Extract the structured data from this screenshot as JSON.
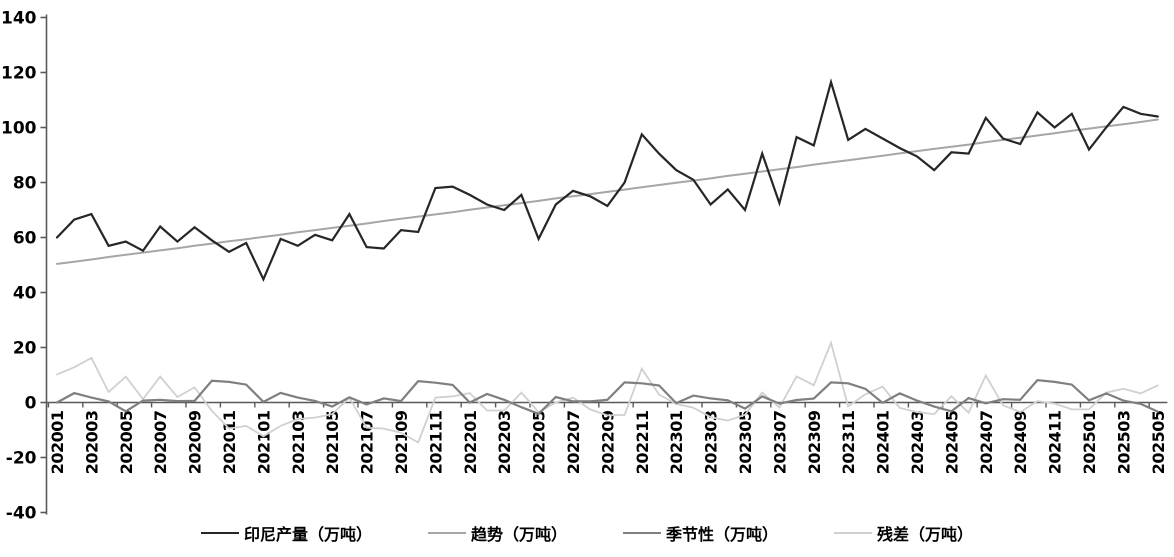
{
  "chart_data": {
    "type": "line",
    "title": "",
    "xlabel": "",
    "ylabel": "",
    "ylim": [
      -40,
      140
    ],
    "ytick_step": 20,
    "ytick_labels": [
      "140",
      "120",
      "100",
      "80",
      "60",
      "40",
      "20",
      "0",
      "-20",
      "-40"
    ],
    "x_label_interval": 2,
    "grid": false,
    "legend_position": "bottom",
    "axis_color": "#595959",
    "text_color": "#000000",
    "categories": [
      "202001",
      "202002",
      "202003",
      "202004",
      "202005",
      "202006",
      "202007",
      "202008",
      "202009",
      "202010",
      "202011",
      "202012",
      "202101",
      "202102",
      "202103",
      "202104",
      "202105",
      "202106",
      "202107",
      "202108",
      "202109",
      "202110",
      "202111",
      "202112",
      "202201",
      "202202",
      "202203",
      "202204",
      "202205",
      "202206",
      "202207",
      "202208",
      "202209",
      "202210",
      "202211",
      "202212",
      "202301",
      "202302",
      "202303",
      "202304",
      "202305",
      "202306",
      "202307",
      "202308",
      "202309",
      "202310",
      "202311",
      "202312",
      "202401",
      "202402",
      "202403",
      "202404",
      "202405",
      "202406",
      "202407",
      "202408",
      "202409",
      "202410",
      "202411",
      "202412",
      "202501",
      "202502",
      "202503",
      "202504",
      "202505"
    ],
    "series": [
      {
        "name": "production",
        "label": "印尼产量（万吨）",
        "color": "#262626",
        "width": 2.2,
        "values": [
          60.0,
          66.5,
          68.5,
          57.0,
          58.5,
          55.2,
          64.0,
          58.5,
          63.7,
          59.0,
          54.8,
          58.0,
          44.8,
          59.5,
          57.0,
          61.0,
          59.0,
          68.5,
          56.5,
          56.0,
          62.7,
          62.0,
          78.0,
          78.5,
          75.5,
          72.0,
          70.0,
          75.5,
          59.5,
          72.0,
          77.0,
          75.0,
          71.5,
          80.0,
          97.5,
          90.5,
          84.5,
          81.0,
          72.0,
          77.5,
          70.0,
          90.5,
          72.5,
          96.5,
          93.5,
          116.5,
          95.5,
          99.5,
          96.0,
          92.5,
          89.5,
          84.5,
          91.0,
          90.5,
          103.5,
          96.0,
          94.0,
          105.5,
          100.0,
          105.0,
          92.0,
          100.0,
          107.5,
          105.0,
          104.0
        ]
      },
      {
        "name": "trend",
        "label": "趋势（万吨）",
        "color": "#a6a6a6",
        "width": 2.0,
        "values": [
          50.4,
          51.2,
          52.0,
          52.9,
          53.7,
          54.5,
          55.3,
          56.1,
          57.0,
          57.8,
          58.6,
          59.4,
          60.2,
          61.0,
          61.9,
          62.7,
          63.5,
          64.3,
          65.1,
          66.0,
          66.8,
          67.6,
          68.4,
          69.2,
          70.1,
          70.9,
          71.7,
          72.5,
          73.3,
          74.2,
          75.0,
          75.8,
          76.6,
          77.4,
          78.3,
          79.1,
          79.9,
          80.7,
          81.5,
          82.4,
          83.2,
          84.0,
          84.8,
          85.6,
          86.5,
          87.3,
          88.1,
          88.9,
          89.7,
          90.6,
          91.4,
          92.2,
          93.0,
          93.8,
          94.7,
          95.5,
          96.3,
          97.1,
          97.9,
          98.8,
          99.6,
          100.4,
          101.2,
          102.0,
          102.9
        ]
      },
      {
        "name": "seasonality",
        "label": "季节性（万吨）",
        "color": "#7f7f7f",
        "width": 2.2,
        "values": [
          0.0,
          3.4,
          1.8,
          0.4,
          -3.2,
          0.7,
          1.0,
          0.5,
          0.6,
          7.9,
          7.5,
          6.5,
          0.2,
          3.5,
          1.8,
          0.6,
          -1.5,
          1.9,
          -0.7,
          1.5,
          0.5,
          7.8,
          7.2,
          6.4,
          0.0,
          3.1,
          1.0,
          -1.7,
          -4.1,
          2.0,
          0.4,
          0.4,
          1.0,
          7.3,
          7.0,
          6.2,
          -0.2,
          2.5,
          1.5,
          0.8,
          -2.2,
          2.2,
          -0.4,
          0.9,
          1.4,
          7.3,
          7.0,
          5.0,
          -0.1,
          3.3,
          0.7,
          -1.5,
          -3.2,
          1.6,
          -0.3,
          1.2,
          1.0,
          8.1,
          7.5,
          6.5,
          0.8,
          3.3,
          0.7,
          -0.5,
          -3.3
        ]
      },
      {
        "name": "residual",
        "label": "残差（万吨）",
        "color": "#d0d0d0",
        "width": 1.8,
        "values": [
          10.2,
          12.8,
          16.2,
          3.8,
          9.4,
          1.2,
          9.4,
          2.0,
          5.5,
          -3.0,
          -9.5,
          -8.5,
          -12.3,
          -8.5,
          -6.0,
          -5.5,
          -4.2,
          1.8,
          -9.2,
          -9.5,
          -11.0,
          -14.5,
          1.8,
          2.2,
          3.4,
          -2.9,
          -2.9,
          3.6,
          -3.5,
          0.0,
          1.8,
          -2.5,
          -4.7,
          -4.5,
          12.3,
          2.9,
          -0.5,
          -1.9,
          -5.3,
          -6.6,
          -4.5,
          3.6,
          -1.9,
          9.5,
          6.3,
          21.7,
          -1.4,
          3.0,
          5.8,
          -2.0,
          -3.5,
          -4.2,
          2.3,
          -3.7,
          9.8,
          -1.0,
          -3.5,
          0.5,
          -0.4,
          -2.5,
          -2.5,
          3.6,
          5.0,
          3.3,
          6.2
        ]
      }
    ]
  }
}
